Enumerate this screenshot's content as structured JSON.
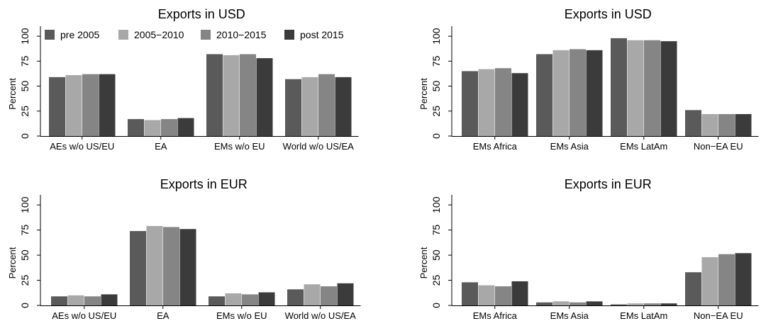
{
  "colors": {
    "series": [
      "#5a5a5a",
      "#a8a8a8",
      "#858585",
      "#3b3b3b"
    ],
    "axis": "#000000",
    "background": "#ffffff"
  },
  "legend": {
    "placement": "top-left (inside top-left panel)",
    "items": [
      "pre 2005",
      "2005−2010",
      "2010−2015",
      "post 2015"
    ]
  },
  "chart_data": [
    {
      "type": "bar",
      "title": "Exports in USD",
      "ylabel": "Percent",
      "xlabel": "",
      "ylim": [
        0,
        110
      ],
      "yticks": [
        0,
        25,
        50,
        75,
        100
      ],
      "categories": [
        "AEs w/o US/EU",
        "EA",
        "EMs w/o EU",
        "World w/o US/EA"
      ],
      "series": [
        {
          "name": "pre 2005",
          "values": [
            59,
            17,
            82,
            57
          ]
        },
        {
          "name": "2005−2010",
          "values": [
            61,
            16,
            81,
            59
          ]
        },
        {
          "name": "2010−2015",
          "values": [
            62,
            17,
            82,
            62
          ]
        },
        {
          "name": "post 2015",
          "values": [
            62,
            18,
            78,
            59
          ]
        }
      ],
      "grid": false,
      "legend": true
    },
    {
      "type": "bar",
      "title": "Exports in USD",
      "ylabel": "Percent",
      "xlabel": "",
      "ylim": [
        0,
        110
      ],
      "yticks": [
        0,
        25,
        50,
        75,
        100
      ],
      "categories": [
        "EMs Africa",
        "EMs Asia",
        "EMs LatAm",
        "Non−EA EU"
      ],
      "series": [
        {
          "name": "pre 2005",
          "values": [
            65,
            82,
            98,
            26
          ]
        },
        {
          "name": "2005−2010",
          "values": [
            67,
            86,
            96,
            22
          ]
        },
        {
          "name": "2010−2015",
          "values": [
            68,
            87,
            96,
            22
          ]
        },
        {
          "name": "post 2015",
          "values": [
            63,
            86,
            95,
            22
          ]
        }
      ],
      "grid": false,
      "legend": false
    },
    {
      "type": "bar",
      "title": "Exports in EUR",
      "ylabel": "Percent",
      "xlabel": "",
      "ylim": [
        0,
        110
      ],
      "yticks": [
        0,
        25,
        50,
        75,
        100
      ],
      "categories": [
        "AEs w/o US/EU",
        "EA",
        "EMs w/o EU",
        "World w/o US/EA"
      ],
      "series": [
        {
          "name": "pre 2005",
          "values": [
            9,
            74,
            9,
            16
          ]
        },
        {
          "name": "2005−2010",
          "values": [
            10,
            79,
            12,
            21
          ]
        },
        {
          "name": "2010−2015",
          "values": [
            9,
            78,
            11,
            19
          ]
        },
        {
          "name": "post 2015",
          "values": [
            11,
            76,
            13,
            22
          ]
        }
      ],
      "grid": false,
      "legend": false
    },
    {
      "type": "bar",
      "title": "Exports in EUR",
      "ylabel": "Percent",
      "xlabel": "",
      "ylim": [
        0,
        110
      ],
      "yticks": [
        0,
        25,
        50,
        75,
        100
      ],
      "categories": [
        "EMs Africa",
        "EMs Asia",
        "EMs LatAm",
        "Non−EA EU"
      ],
      "series": [
        {
          "name": "pre 2005",
          "values": [
            23,
            3,
            1,
            33
          ]
        },
        {
          "name": "2005−2010",
          "values": [
            20,
            4,
            2,
            48
          ]
        },
        {
          "name": "2010−2015",
          "values": [
            19,
            3,
            2,
            51
          ]
        },
        {
          "name": "post 2015",
          "values": [
            24,
            4,
            2,
            52
          ]
        }
      ],
      "grid": false,
      "legend": false
    }
  ]
}
